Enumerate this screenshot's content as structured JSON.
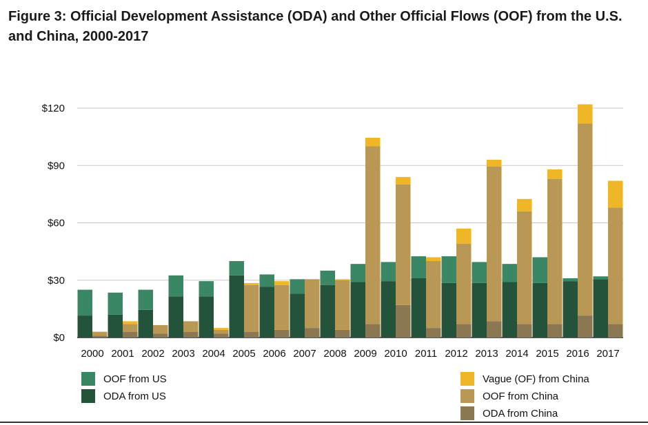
{
  "chart_data": {
    "type": "bar",
    "stacking": "stacked, two bars per year (US left, China right)",
    "title": "Figure 3: Official Development Assistance (ODA) and Other Official Flows (OOF) from the U.S. and China, 2000-2017",
    "xlabel": "",
    "ylabel": "",
    "ylim": [
      0,
      120
    ],
    "yticks": [
      0,
      30,
      60,
      90,
      120
    ],
    "ytick_labels": [
      "$0",
      "$30",
      "$60",
      "$90",
      "$120"
    ],
    "grid": true,
    "categories": [
      "2000",
      "2001",
      "2002",
      "2003",
      "2004",
      "2005",
      "2006",
      "2007",
      "2008",
      "2009",
      "2010",
      "2011",
      "2012",
      "2013",
      "2014",
      "2015",
      "2016",
      "2017"
    ],
    "series": [
      {
        "name": "ODA from US",
        "group": "US",
        "color": "#24533c",
        "values": [
          11.5,
          12,
          14.5,
          21.5,
          21.5,
          32.5,
          26.5,
          23,
          27.5,
          29,
          29.5,
          31,
          28.5,
          28.5,
          29,
          28.5,
          29.5,
          30.5
        ]
      },
      {
        "name": "OOF from US",
        "group": "US",
        "color": "#3a8765",
        "values": [
          13.5,
          11.5,
          10.5,
          11,
          8,
          7.5,
          6.5,
          7.5,
          7.5,
          9.5,
          10,
          11.5,
          14,
          11,
          9.5,
          13.5,
          1.5,
          1.5
        ]
      },
      {
        "name": "ODA from China",
        "group": "China",
        "color": "#8b7752",
        "values": [
          1,
          3,
          2,
          3,
          2,
          3,
          4,
          5,
          4,
          7,
          17,
          5,
          7,
          8.5,
          7,
          7,
          11.5,
          7
        ]
      },
      {
        "name": "OOF from China",
        "group": "China",
        "color": "#b99856",
        "values": [
          2,
          4,
          4.5,
          5.5,
          2,
          24.5,
          23.5,
          25.5,
          26,
          93,
          63,
          35,
          42,
          81,
          59,
          76,
          100.5,
          61
        ]
      },
      {
        "name": "Vague (OF) from China",
        "group": "China",
        "color": "#efb728",
        "values": [
          0,
          1.5,
          0,
          0,
          1,
          1,
          2,
          0,
          0.5,
          4.5,
          4,
          2,
          8,
          3.5,
          6.5,
          5,
          10,
          14
        ]
      }
    ],
    "legend": {
      "placement": "bottom",
      "left_entries": [
        "OOF from US",
        "ODA from US"
      ],
      "right_entries": [
        "Vague (OF) from China",
        "OOF from China",
        "ODA from China"
      ]
    }
  }
}
